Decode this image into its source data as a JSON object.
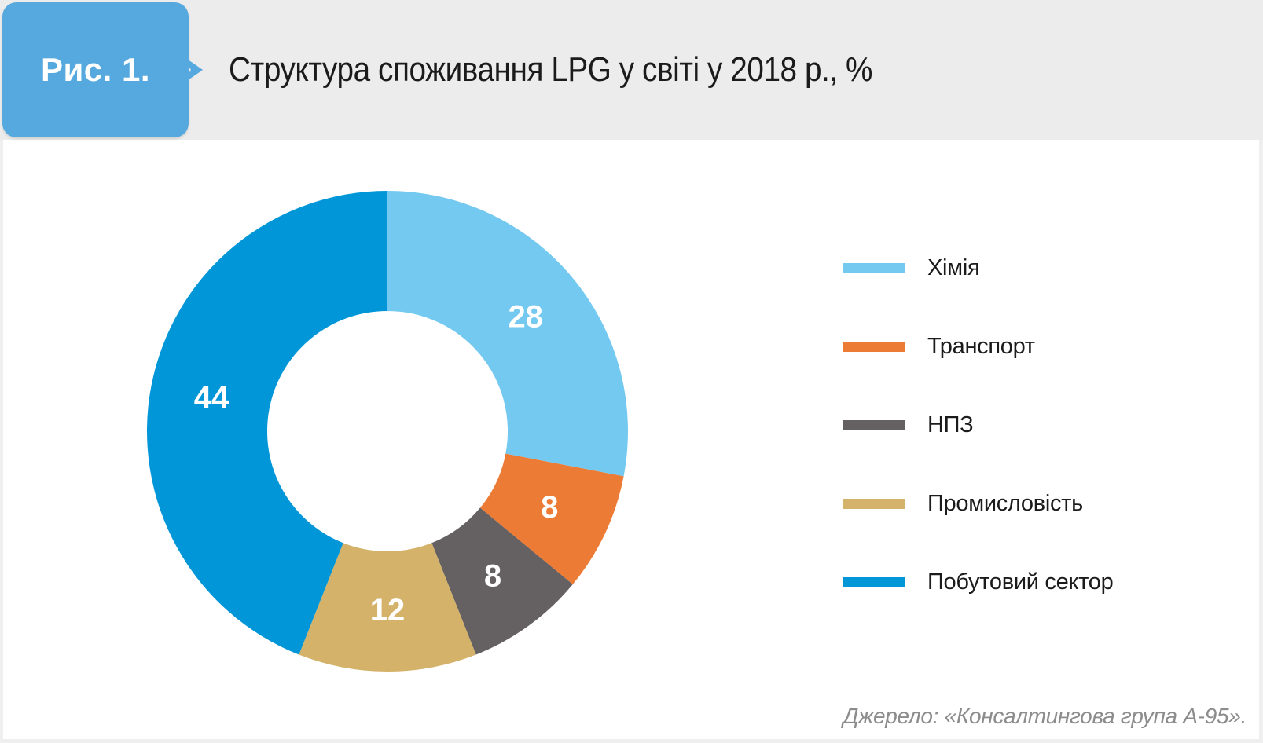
{
  "figure": {
    "badge_label": "Рис. 1.",
    "title": "Структура споживання LPG у світі у 2018 р., %",
    "source": "Джерело: «Консалтингова група А-95»."
  },
  "colors": {
    "badge_blue": "#56A9DE",
    "header_bg": "#ECECEC",
    "page_border": "#EFEFEF",
    "title_text": "#1B1B1B",
    "legend_text": "#1B1B1B",
    "source_text": "#8C8C8C",
    "slice_label_text": "#FFFFFF"
  },
  "chart_data": {
    "type": "pie",
    "subtype": "donut",
    "title": "Структура споживання LPG у світі у 2018 р., %",
    "unit": "%",
    "start_angle_deg": 0,
    "direction": "clockwise",
    "inner_radius_ratio": 0.5,
    "legend_position": "right",
    "data_labels": "value-inside-slice",
    "segments": [
      {
        "label": "Хімія",
        "value": 28,
        "color": "#74C9F0"
      },
      {
        "label": "Транспорт",
        "value": 8,
        "color": "#EC7B35"
      },
      {
        "label": "НПЗ",
        "value": 8,
        "color": "#656162"
      },
      {
        "label": "Промисловість",
        "value": 12,
        "color": "#D4B269"
      },
      {
        "label": "Побутовий сектор",
        "value": 44,
        "color": "#0096D8"
      }
    ]
  }
}
